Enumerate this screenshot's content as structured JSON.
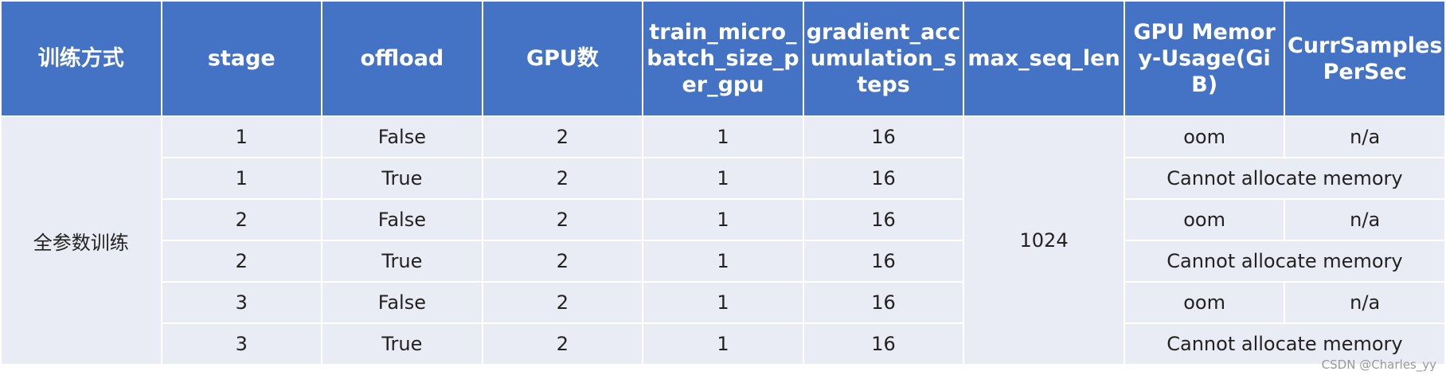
{
  "table": {
    "header": [
      "训练方式",
      "stage",
      "offload",
      "GPU数",
      "train_micro_batch_size_per_gpu",
      "gradient_accumulation_steps",
      "max_seq_len",
      "GPU Memory-Usage(GiB)",
      "CurrSamplesPerSec"
    ],
    "method": "全参数训练",
    "max_seq_len": 1024,
    "rows": [
      {
        "stage": 1,
        "offload": "False",
        "gpus": 2,
        "micro_batch": 1,
        "grad_accum": 16,
        "memory": "oom",
        "samples": "n/a"
      },
      {
        "stage": 1,
        "offload": "True",
        "gpus": 2,
        "micro_batch": 1,
        "grad_accum": 16,
        "error": "Cannot allocate memory"
      },
      {
        "stage": 2,
        "offload": "False",
        "gpus": 2,
        "micro_batch": 1,
        "grad_accum": 16,
        "memory": "oom",
        "samples": "n/a"
      },
      {
        "stage": 2,
        "offload": "True",
        "gpus": 2,
        "micro_batch": 1,
        "grad_accum": 16,
        "error": "Cannot allocate memory"
      },
      {
        "stage": 3,
        "offload": "False",
        "gpus": 2,
        "micro_batch": 1,
        "grad_accum": 16,
        "memory": "oom",
        "samples": "n/a"
      },
      {
        "stage": 3,
        "offload": "True",
        "gpus": 2,
        "micro_batch": 1,
        "grad_accum": 16,
        "error": "Cannot allocate memory"
      }
    ]
  },
  "watermark": "CSDN @Charles_yy"
}
